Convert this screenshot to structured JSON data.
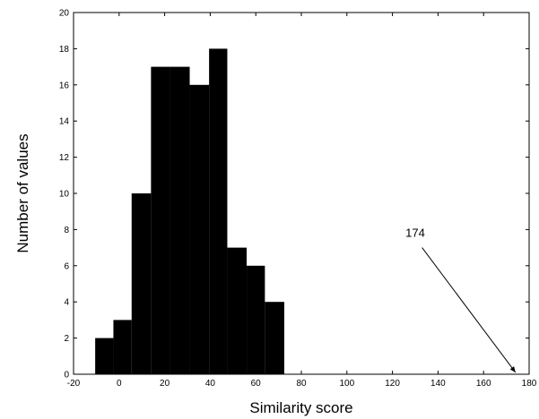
{
  "chart_data": {
    "type": "bar",
    "title": "",
    "xlabel": "Similarity score",
    "ylabel": "Number of values",
    "xlim": [
      -20,
      180
    ],
    "ylim": [
      0,
      20
    ],
    "xticks": [
      -20,
      0,
      20,
      40,
      60,
      80,
      100,
      120,
      140,
      160,
      180
    ],
    "yticks": [
      0,
      2,
      4,
      6,
      8,
      10,
      12,
      14,
      16,
      18,
      20
    ],
    "grid": false,
    "bar_color": "#000000",
    "bins": [
      {
        "start": -10.5,
        "end": -2.5,
        "value": 2
      },
      {
        "start": -2.5,
        "end": 5.5,
        "value": 3
      },
      {
        "start": 5.5,
        "end": 14,
        "value": 10
      },
      {
        "start": 14,
        "end": 22.5,
        "value": 17
      },
      {
        "start": 22.5,
        "end": 31,
        "value": 17
      },
      {
        "start": 31,
        "end": 39.5,
        "value": 16
      },
      {
        "start": 39.5,
        "end": 47.5,
        "value": 18
      },
      {
        "start": 47.5,
        "end": 56,
        "value": 7
      },
      {
        "start": 56,
        "end": 64,
        "value": 6
      },
      {
        "start": 64,
        "end": 72.5,
        "value": 4
      }
    ],
    "annotations": [
      {
        "text": "174",
        "text_x": 130,
        "text_y": 7.6,
        "arrow_from": [
          133,
          7.0
        ],
        "arrow_to": [
          174,
          0.1
        ]
      }
    ]
  }
}
